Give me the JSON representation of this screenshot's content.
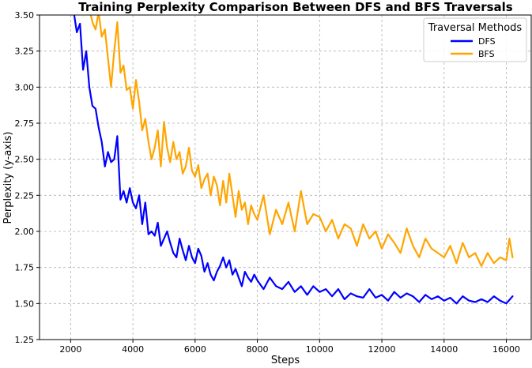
{
  "chart_data": {
    "type": "line",
    "title": "Training Perplexity Comparison Between DFS and BFS Traversals",
    "xlabel": "Steps",
    "ylabel": "Perplexity (y-axis)",
    "xlim": [
      1000,
      16800
    ],
    "ylim": [
      1.25,
      3.5
    ],
    "xticks": [
      2000,
      4000,
      6000,
      8000,
      10000,
      12000,
      14000,
      16000
    ],
    "yticks": [
      1.25,
      1.5,
      1.75,
      2.0,
      2.25,
      2.5,
      2.75,
      3.0,
      3.25,
      3.5
    ],
    "xtick_labels": [
      "2000",
      "4000",
      "6000",
      "8000",
      "10000",
      "12000",
      "14000",
      "16000"
    ],
    "ytick_labels": [
      "1.25",
      "1.50",
      "1.75",
      "2.00",
      "2.25",
      "2.50",
      "2.75",
      "3.00",
      "3.25",
      "3.50"
    ],
    "grid": true,
    "legend": {
      "title": "Traversal Methods",
      "position": "top-right"
    },
    "series": [
      {
        "name": "DFS",
        "color": "#0000ff",
        "x": [
          2000,
          2100,
          2200,
          2300,
          2400,
          2500,
          2600,
          2700,
          2800,
          2900,
          3000,
          3100,
          3200,
          3300,
          3400,
          3500,
          3600,
          3700,
          3800,
          3900,
          4000,
          4100,
          4200,
          4300,
          4400,
          4500,
          4600,
          4700,
          4800,
          4900,
          5000,
          5100,
          5200,
          5300,
          5400,
          5500,
          5600,
          5700,
          5800,
          5900,
          6000,
          6100,
          6200,
          6300,
          6400,
          6500,
          6600,
          6700,
          6800,
          6900,
          7000,
          7100,
          7200,
          7300,
          7400,
          7500,
          7600,
          7700,
          7800,
          7900,
          8000,
          8200,
          8400,
          8600,
          8800,
          9000,
          9200,
          9400,
          9600,
          9800,
          10000,
          10200,
          10400,
          10600,
          10800,
          11000,
          11200,
          11400,
          11600,
          11800,
          12000,
          12200,
          12400,
          12600,
          12800,
          13000,
          13200,
          13400,
          13600,
          13800,
          14000,
          14200,
          14400,
          14600,
          14800,
          15000,
          15200,
          15400,
          15600,
          15800,
          16000,
          16200
        ],
        "values": [
          3.6,
          3.52,
          3.38,
          3.44,
          3.12,
          3.25,
          3.0,
          2.87,
          2.85,
          2.72,
          2.62,
          2.45,
          2.55,
          2.48,
          2.5,
          2.66,
          2.22,
          2.28,
          2.2,
          2.3,
          2.2,
          2.16,
          2.25,
          2.05,
          2.2,
          1.98,
          2.0,
          1.97,
          2.06,
          1.9,
          1.95,
          2.0,
          1.92,
          1.85,
          1.82,
          1.95,
          1.87,
          1.8,
          1.9,
          1.82,
          1.78,
          1.88,
          1.83,
          1.72,
          1.78,
          1.7,
          1.66,
          1.72,
          1.76,
          1.82,
          1.75,
          1.8,
          1.7,
          1.74,
          1.68,
          1.62,
          1.72,
          1.68,
          1.65,
          1.7,
          1.66,
          1.6,
          1.68,
          1.62,
          1.6,
          1.65,
          1.58,
          1.62,
          1.56,
          1.62,
          1.58,
          1.6,
          1.55,
          1.6,
          1.53,
          1.57,
          1.55,
          1.54,
          1.6,
          1.54,
          1.56,
          1.52,
          1.58,
          1.54,
          1.57,
          1.55,
          1.51,
          1.56,
          1.53,
          1.55,
          1.52,
          1.54,
          1.5,
          1.55,
          1.52,
          1.51,
          1.53,
          1.51,
          1.55,
          1.52,
          1.5,
          1.55
        ]
      },
      {
        "name": "BFS",
        "color": "#ffa500",
        "x": [
          2500,
          2600,
          2700,
          2800,
          2900,
          3000,
          3100,
          3200,
          3300,
          3400,
          3500,
          3600,
          3700,
          3800,
          3900,
          4000,
          4100,
          4200,
          4300,
          4400,
          4500,
          4600,
          4700,
          4800,
          4900,
          5000,
          5100,
          5200,
          5300,
          5400,
          5500,
          5600,
          5700,
          5800,
          5900,
          6000,
          6100,
          6200,
          6300,
          6400,
          6500,
          6600,
          6700,
          6800,
          6900,
          7000,
          7100,
          7200,
          7300,
          7400,
          7500,
          7600,
          7700,
          7800,
          7900,
          8000,
          8200,
          8400,
          8600,
          8800,
          9000,
          9200,
          9400,
          9600,
          9800,
          10000,
          10200,
          10400,
          10600,
          10800,
          11000,
          11200,
          11400,
          11600,
          11800,
          12000,
          12200,
          12400,
          12600,
          12800,
          13000,
          13200,
          13400,
          13600,
          13800,
          14000,
          14200,
          14400,
          14600,
          14800,
          15000,
          15200,
          15400,
          15600,
          15800,
          16000,
          16100,
          16200
        ],
        "values": [
          3.6,
          3.55,
          3.45,
          3.4,
          3.52,
          3.35,
          3.4,
          3.2,
          3.0,
          3.25,
          3.45,
          3.1,
          3.15,
          2.98,
          3.0,
          2.85,
          3.05,
          2.9,
          2.7,
          2.78,
          2.62,
          2.5,
          2.58,
          2.7,
          2.45,
          2.76,
          2.58,
          2.48,
          2.62,
          2.5,
          2.55,
          2.4,
          2.45,
          2.58,
          2.42,
          2.38,
          2.46,
          2.3,
          2.36,
          2.4,
          2.25,
          2.38,
          2.32,
          2.18,
          2.35,
          2.2,
          2.4,
          2.25,
          2.1,
          2.28,
          2.15,
          2.2,
          2.05,
          2.18,
          2.12,
          2.08,
          2.25,
          1.98,
          2.15,
          2.05,
          2.2,
          2.0,
          2.28,
          2.05,
          2.12,
          2.1,
          2.0,
          2.08,
          1.95,
          2.05,
          2.02,
          1.9,
          2.05,
          1.95,
          2.0,
          1.88,
          1.98,
          1.92,
          1.85,
          2.02,
          1.9,
          1.82,
          1.95,
          1.88,
          1.85,
          1.82,
          1.9,
          1.78,
          1.92,
          1.82,
          1.85,
          1.76,
          1.85,
          1.78,
          1.82,
          1.8,
          1.95,
          1.82
        ]
      }
    ]
  }
}
